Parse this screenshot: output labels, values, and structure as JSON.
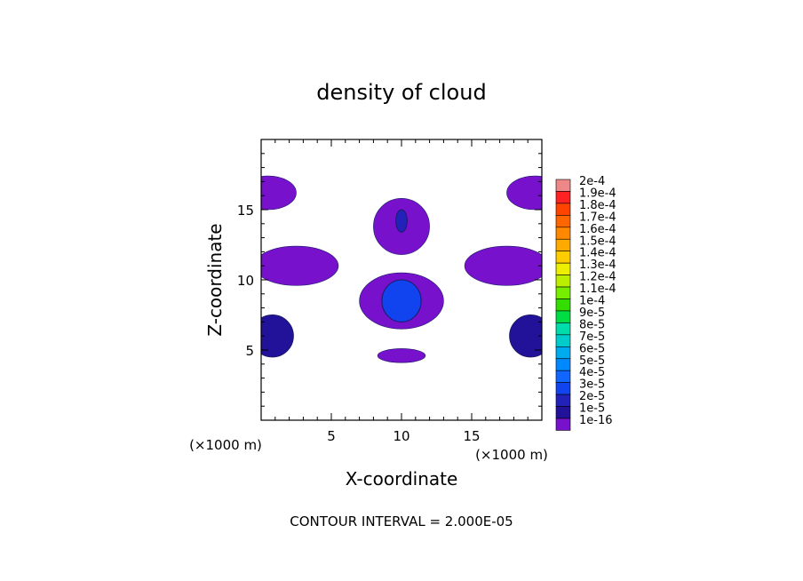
{
  "chart_data": {
    "type": "heatmap",
    "title": "density of cloud",
    "xlabel": "X-coordinate",
    "ylabel": "Z-coordinate",
    "x_unit": "(×1000 m)",
    "z_unit": "(×1000 m)",
    "xlim": [
      0,
      20
    ],
    "ylim": [
      0,
      20
    ],
    "x_ticks": [
      "5",
      "10",
      "15"
    ],
    "y_ticks": [
      "5",
      "10",
      "15"
    ],
    "x_tick_values": [
      5,
      10,
      15
    ],
    "y_tick_values": [
      5,
      10,
      15
    ],
    "footer": "CONTOUR INTERVAL = 2.000E-05",
    "colorbar": {
      "labels": [
        "2e-4",
        "1.9e-4",
        "1.8e-4",
        "1.7e-4",
        "1.6e-4",
        "1.5e-4",
        "1.4e-4",
        "1.3e-4",
        "1.2e-4",
        "1.1e-4",
        "1e-4",
        "9e-5",
        "8e-5",
        "7e-5",
        "6e-5",
        "5e-5",
        "4e-5",
        "3e-5",
        "2e-5",
        "1e-5",
        "1e-16"
      ],
      "colors": [
        "#ee8888",
        "#ff2222",
        "#ff4400",
        "#ff6600",
        "#ff8800",
        "#ffaa00",
        "#ffcc00",
        "#eeee00",
        "#bbee00",
        "#77ee00",
        "#33dd00",
        "#00dd44",
        "#00ddaa",
        "#00cccc",
        "#00aaee",
        "#0088ff",
        "#1166ff",
        "#1144ee",
        "#2222bb",
        "#221199",
        "#7711cc"
      ]
    },
    "regions": [
      {
        "name": "cloud-upper-center",
        "level": 1,
        "cx": 10,
        "cz": 13.8,
        "rx": 2.0,
        "rz": 2.0
      },
      {
        "name": "cloud-upper-core",
        "level": 3,
        "cx": 10,
        "cz": 14.2,
        "rx": 0.4,
        "rz": 0.8
      },
      {
        "name": "cloud-mid-center",
        "level": 1,
        "cx": 10,
        "cz": 8.5,
        "rx": 3.0,
        "rz": 2.0
      },
      {
        "name": "cloud-mid-core",
        "level": 4,
        "cx": 10,
        "cz": 8.5,
        "rx": 1.4,
        "rz": 1.5
      },
      {
        "name": "cloud-low-center",
        "level": 1,
        "cx": 10,
        "cz": 4.6,
        "rx": 1.7,
        "rz": 0.5
      },
      {
        "name": "cloud-left-top",
        "level": 1,
        "cx": 0.5,
        "cz": 16.2,
        "rx": 2.0,
        "rz": 1.2
      },
      {
        "name": "cloud-right-top",
        "level": 1,
        "cx": 19.5,
        "cz": 16.2,
        "rx": 2.0,
        "rz": 1.2
      },
      {
        "name": "cloud-left-band",
        "level": 1,
        "cx": 2.5,
        "cz": 11.0,
        "rx": 3.0,
        "rz": 1.4
      },
      {
        "name": "cloud-right-band",
        "level": 1,
        "cx": 17.5,
        "cz": 11.0,
        "rx": 3.0,
        "rz": 1.4
      },
      {
        "name": "cloud-left-low",
        "level": 2,
        "cx": 0.8,
        "cz": 6.0,
        "rx": 1.5,
        "rz": 1.5
      },
      {
        "name": "cloud-right-low",
        "level": 2,
        "cx": 19.2,
        "cz": 6.0,
        "rx": 1.5,
        "rz": 1.5
      }
    ]
  }
}
